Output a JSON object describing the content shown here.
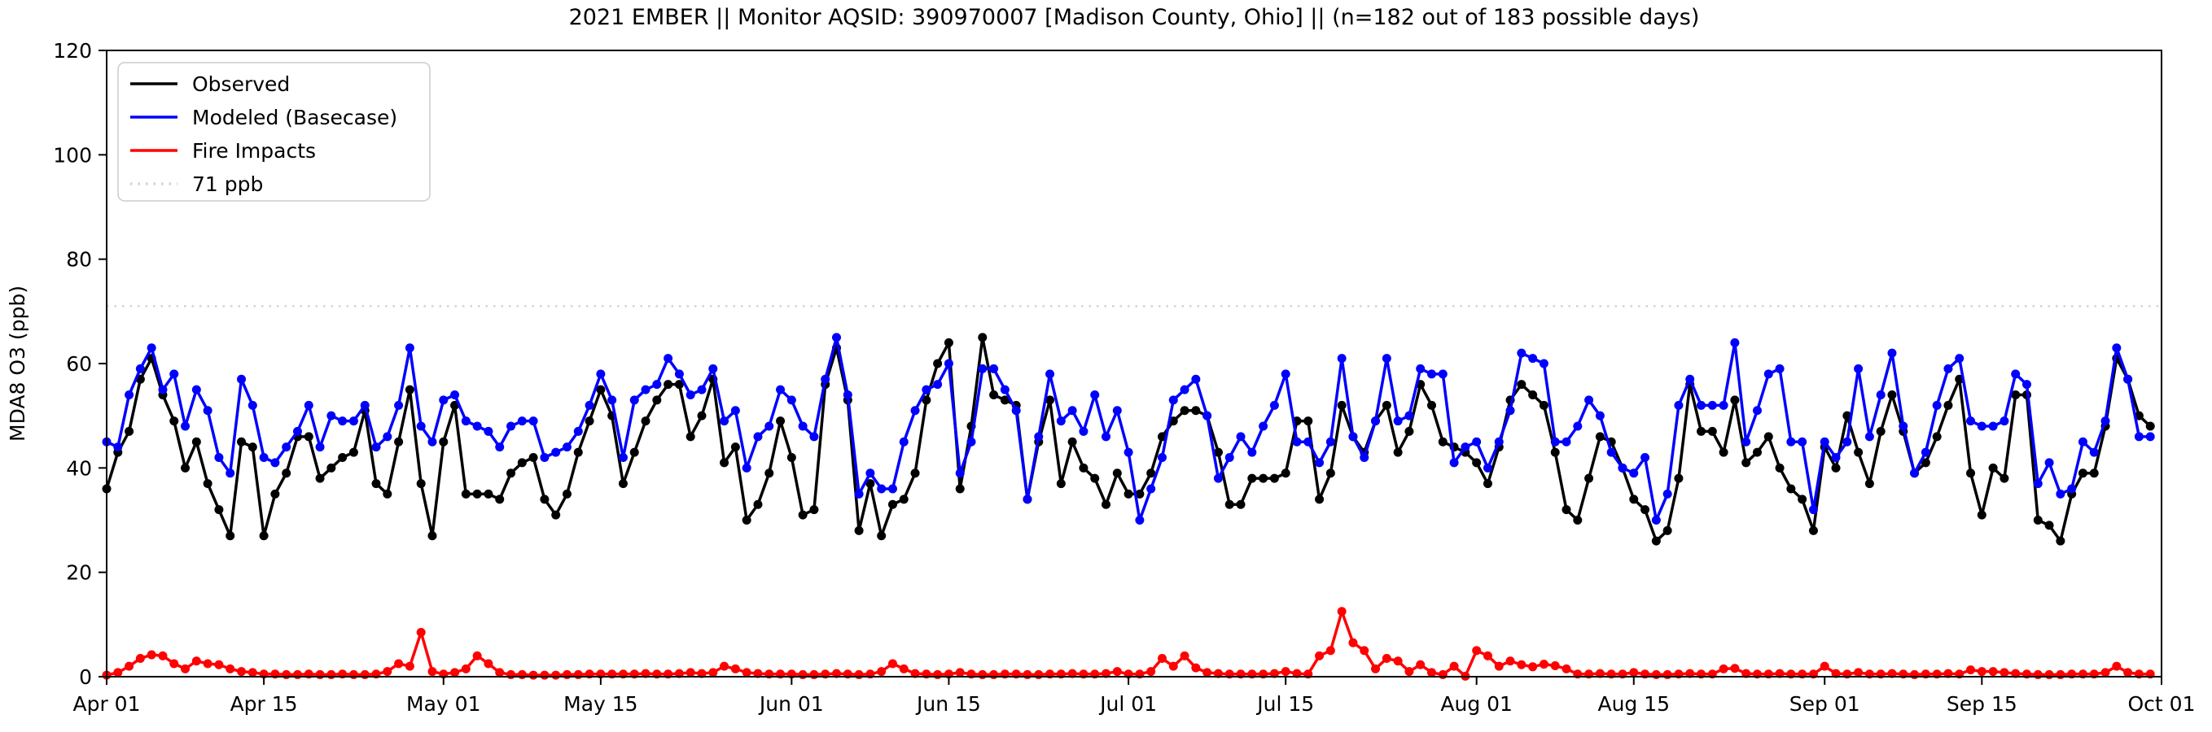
{
  "chart_data": {
    "type": "line",
    "title": "2021 EMBER || Monitor AQSID: 390970007 [Madison County, Ohio] || (n=182 out of 183 possible days)",
    "xlabel": "",
    "ylabel": "MDA8 O3 (ppb)",
    "ylim": [
      0,
      120
    ],
    "yticks": [
      0,
      20,
      40,
      60,
      80,
      100,
      120
    ],
    "grid": false,
    "legend_position": "upper left",
    "start_date": "2021-04-01",
    "end_date": "2021-09-30",
    "cadence": "daily",
    "n_days": 183,
    "xticks": {
      "labels": [
        "Apr 01",
        "Apr 15",
        "May 01",
        "May 15",
        "Jun 01",
        "Jun 15",
        "Jul 01",
        "Jul 15",
        "Aug 01",
        "Aug 15",
        "Sep 01",
        "Sep 15",
        "Oct 01"
      ],
      "day_offsets": [
        0,
        14,
        30,
        44,
        61,
        75,
        91,
        105,
        122,
        136,
        153,
        167,
        183
      ]
    },
    "threshold": {
      "value": 71,
      "label": "71 ppb",
      "color": "#d3d3d3",
      "style": "dotted"
    },
    "legend": [
      {
        "label": "Observed",
        "color": "#000000",
        "style": "solid"
      },
      {
        "label": "Modeled (Basecase)",
        "color": "#0000ff",
        "style": "solid"
      },
      {
        "label": "Fire Impacts",
        "color": "#ff0000",
        "style": "solid"
      },
      {
        "label": "71 ppb",
        "color": "#d3d3d3",
        "style": "dotted"
      }
    ],
    "series": [
      {
        "name": "Observed",
        "color": "#000000",
        "marker": "circle",
        "values": [
          36,
          43,
          47,
          57,
          61,
          54,
          49,
          40,
          45,
          37,
          32,
          27,
          45,
          44,
          27,
          35,
          39,
          46,
          46,
          38,
          40,
          42,
          43,
          51,
          37,
          35,
          45,
          55,
          37,
          27,
          45,
          52,
          35,
          35,
          35,
          34,
          39,
          41,
          42,
          34,
          31,
          35,
          43,
          49,
          55,
          50,
          37,
          43,
          49,
          53,
          56,
          56,
          46,
          50,
          57,
          41,
          44,
          30,
          33,
          39,
          49,
          42,
          31,
          32,
          56,
          63,
          53,
          28,
          37,
          27,
          33,
          34,
          39,
          53,
          60,
          64,
          36,
          48,
          65,
          54,
          53,
          52,
          34,
          45,
          53,
          37,
          45,
          40,
          38,
          33,
          39,
          35,
          35,
          39,
          46,
          49,
          51,
          51,
          50,
          43,
          33,
          33,
          38,
          38,
          38,
          39,
          49,
          49,
          34,
          39,
          52,
          46,
          43,
          49,
          52,
          43,
          47,
          56,
          52,
          45,
          44,
          43,
          41,
          37,
          44,
          53,
          56,
          54,
          52,
          43,
          32,
          30,
          38,
          46,
          45,
          40,
          34,
          32,
          26,
          28,
          38,
          56,
          47,
          47,
          43,
          53,
          41,
          43,
          46,
          40,
          36,
          34,
          28,
          44,
          40,
          50,
          43,
          37,
          47,
          54,
          47,
          39,
          41,
          46,
          52,
          57,
          39,
          31,
          40,
          38,
          54,
          54,
          30,
          29,
          26,
          35,
          39,
          39,
          48,
          61,
          57,
          50,
          48
        ]
      },
      {
        "name": "Modeled (Basecase)",
        "color": "#0000ff",
        "marker": "circle",
        "values": [
          45,
          44,
          54,
          59,
          63,
          55,
          58,
          48,
          55,
          51,
          42,
          39,
          57,
          52,
          42,
          41,
          44,
          47,
          52,
          44,
          50,
          49,
          49,
          52,
          44,
          46,
          52,
          63,
          48,
          45,
          53,
          54,
          49,
          48,
          47,
          44,
          48,
          49,
          49,
          42,
          43,
          44,
          47,
          52,
          58,
          53,
          42,
          53,
          55,
          56,
          61,
          58,
          54,
          55,
          59,
          49,
          51,
          40,
          46,
          48,
          55,
          53,
          48,
          46,
          57,
          65,
          54,
          35,
          39,
          36,
          36,
          45,
          51,
          55,
          56,
          60,
          39,
          45,
          59,
          59,
          55,
          51,
          34,
          46,
          58,
          49,
          51,
          47,
          54,
          46,
          51,
          43,
          30,
          36,
          42,
          53,
          55,
          57,
          50,
          38,
          42,
          46,
          43,
          48,
          52,
          58,
          45,
          45,
          41,
          45,
          61,
          46,
          42,
          49,
          61,
          49,
          50,
          59,
          58,
          58,
          41,
          44,
          45,
          40,
          45,
          51,
          62,
          61,
          60,
          45,
          45,
          48,
          53,
          50,
          43,
          40,
          39,
          42,
          30,
          35,
          52,
          57,
          52,
          52,
          52,
          64,
          45,
          51,
          58,
          59,
          45,
          45,
          32,
          45,
          42,
          45,
          59,
          46,
          54,
          62,
          48,
          39,
          43,
          52,
          59,
          61,
          49,
          48,
          48,
          49,
          58,
          56,
          37,
          41,
          35,
          36,
          45,
          43,
          49,
          63,
          57,
          46,
          46
        ]
      },
      {
        "name": "Fire Impacts",
        "color": "#ff0000",
        "marker": "circle",
        "values": [
          0.3,
          0.8,
          2,
          3.5,
          4.2,
          4,
          2.5,
          1.5,
          3,
          2.5,
          2.3,
          1.5,
          1,
          0.8,
          0.5,
          0.5,
          0.4,
          0.4,
          0.5,
          0.4,
          0.4,
          0.5,
          0.4,
          0.4,
          0.5,
          1,
          2.5,
          2,
          8.5,
          1,
          0.5,
          0.8,
          1.5,
          4,
          2.5,
          0.8,
          0.4,
          0.4,
          0.3,
          0.3,
          0.3,
          0.4,
          0.4,
          0.5,
          0.5,
          0.5,
          0.5,
          0.5,
          0.6,
          0.5,
          0.5,
          0.6,
          0.8,
          0.6,
          0.8,
          2,
          1.5,
          0.8,
          0.6,
          0.5,
          0.5,
          0.5,
          0.4,
          0.4,
          0.5,
          0.6,
          0.5,
          0.4,
          0.5,
          1,
          2.5,
          1.5,
          0.6,
          0.5,
          0.4,
          0.5,
          0.8,
          0.5,
          0.4,
          0.4,
          0.5,
          0.5,
          0.4,
          0.4,
          0.5,
          0.5,
          0.6,
          0.5,
          0.5,
          0.6,
          1,
          0.5,
          0.5,
          1,
          3.5,
          2,
          4,
          1.7,
          0.8,
          0.6,
          0.5,
          0.5,
          0.5,
          0.5,
          0.6,
          1,
          0.6,
          0.5,
          4,
          5,
          12.5,
          6.5,
          5,
          1.5,
          3.5,
          3,
          1,
          2.3,
          0.8,
          0.4,
          2,
          0.1,
          5,
          4,
          2,
          3,
          2.3,
          1.9,
          2.4,
          2.1,
          1.5,
          0.5,
          0.5,
          0.6,
          0.5,
          0.5,
          0.8,
          0.5,
          0.4,
          0.4,
          0.5,
          0.6,
          0.5,
          0.5,
          1.5,
          1.6,
          0.6,
          0.5,
          0.5,
          0.6,
          0.5,
          0.5,
          0.5,
          2,
          0.6,
          0.5,
          0.8,
          0.5,
          0.5,
          0.6,
          0.5,
          0.4,
          0.5,
          0.5,
          0.6,
          0.5,
          1.3,
          1,
          1,
          0.8,
          0.6,
          0.5,
          0.4,
          0.4,
          0.4,
          0.5,
          0.5,
          0.5,
          0.8,
          2,
          0.8,
          0.5,
          0.5
        ]
      }
    ]
  }
}
